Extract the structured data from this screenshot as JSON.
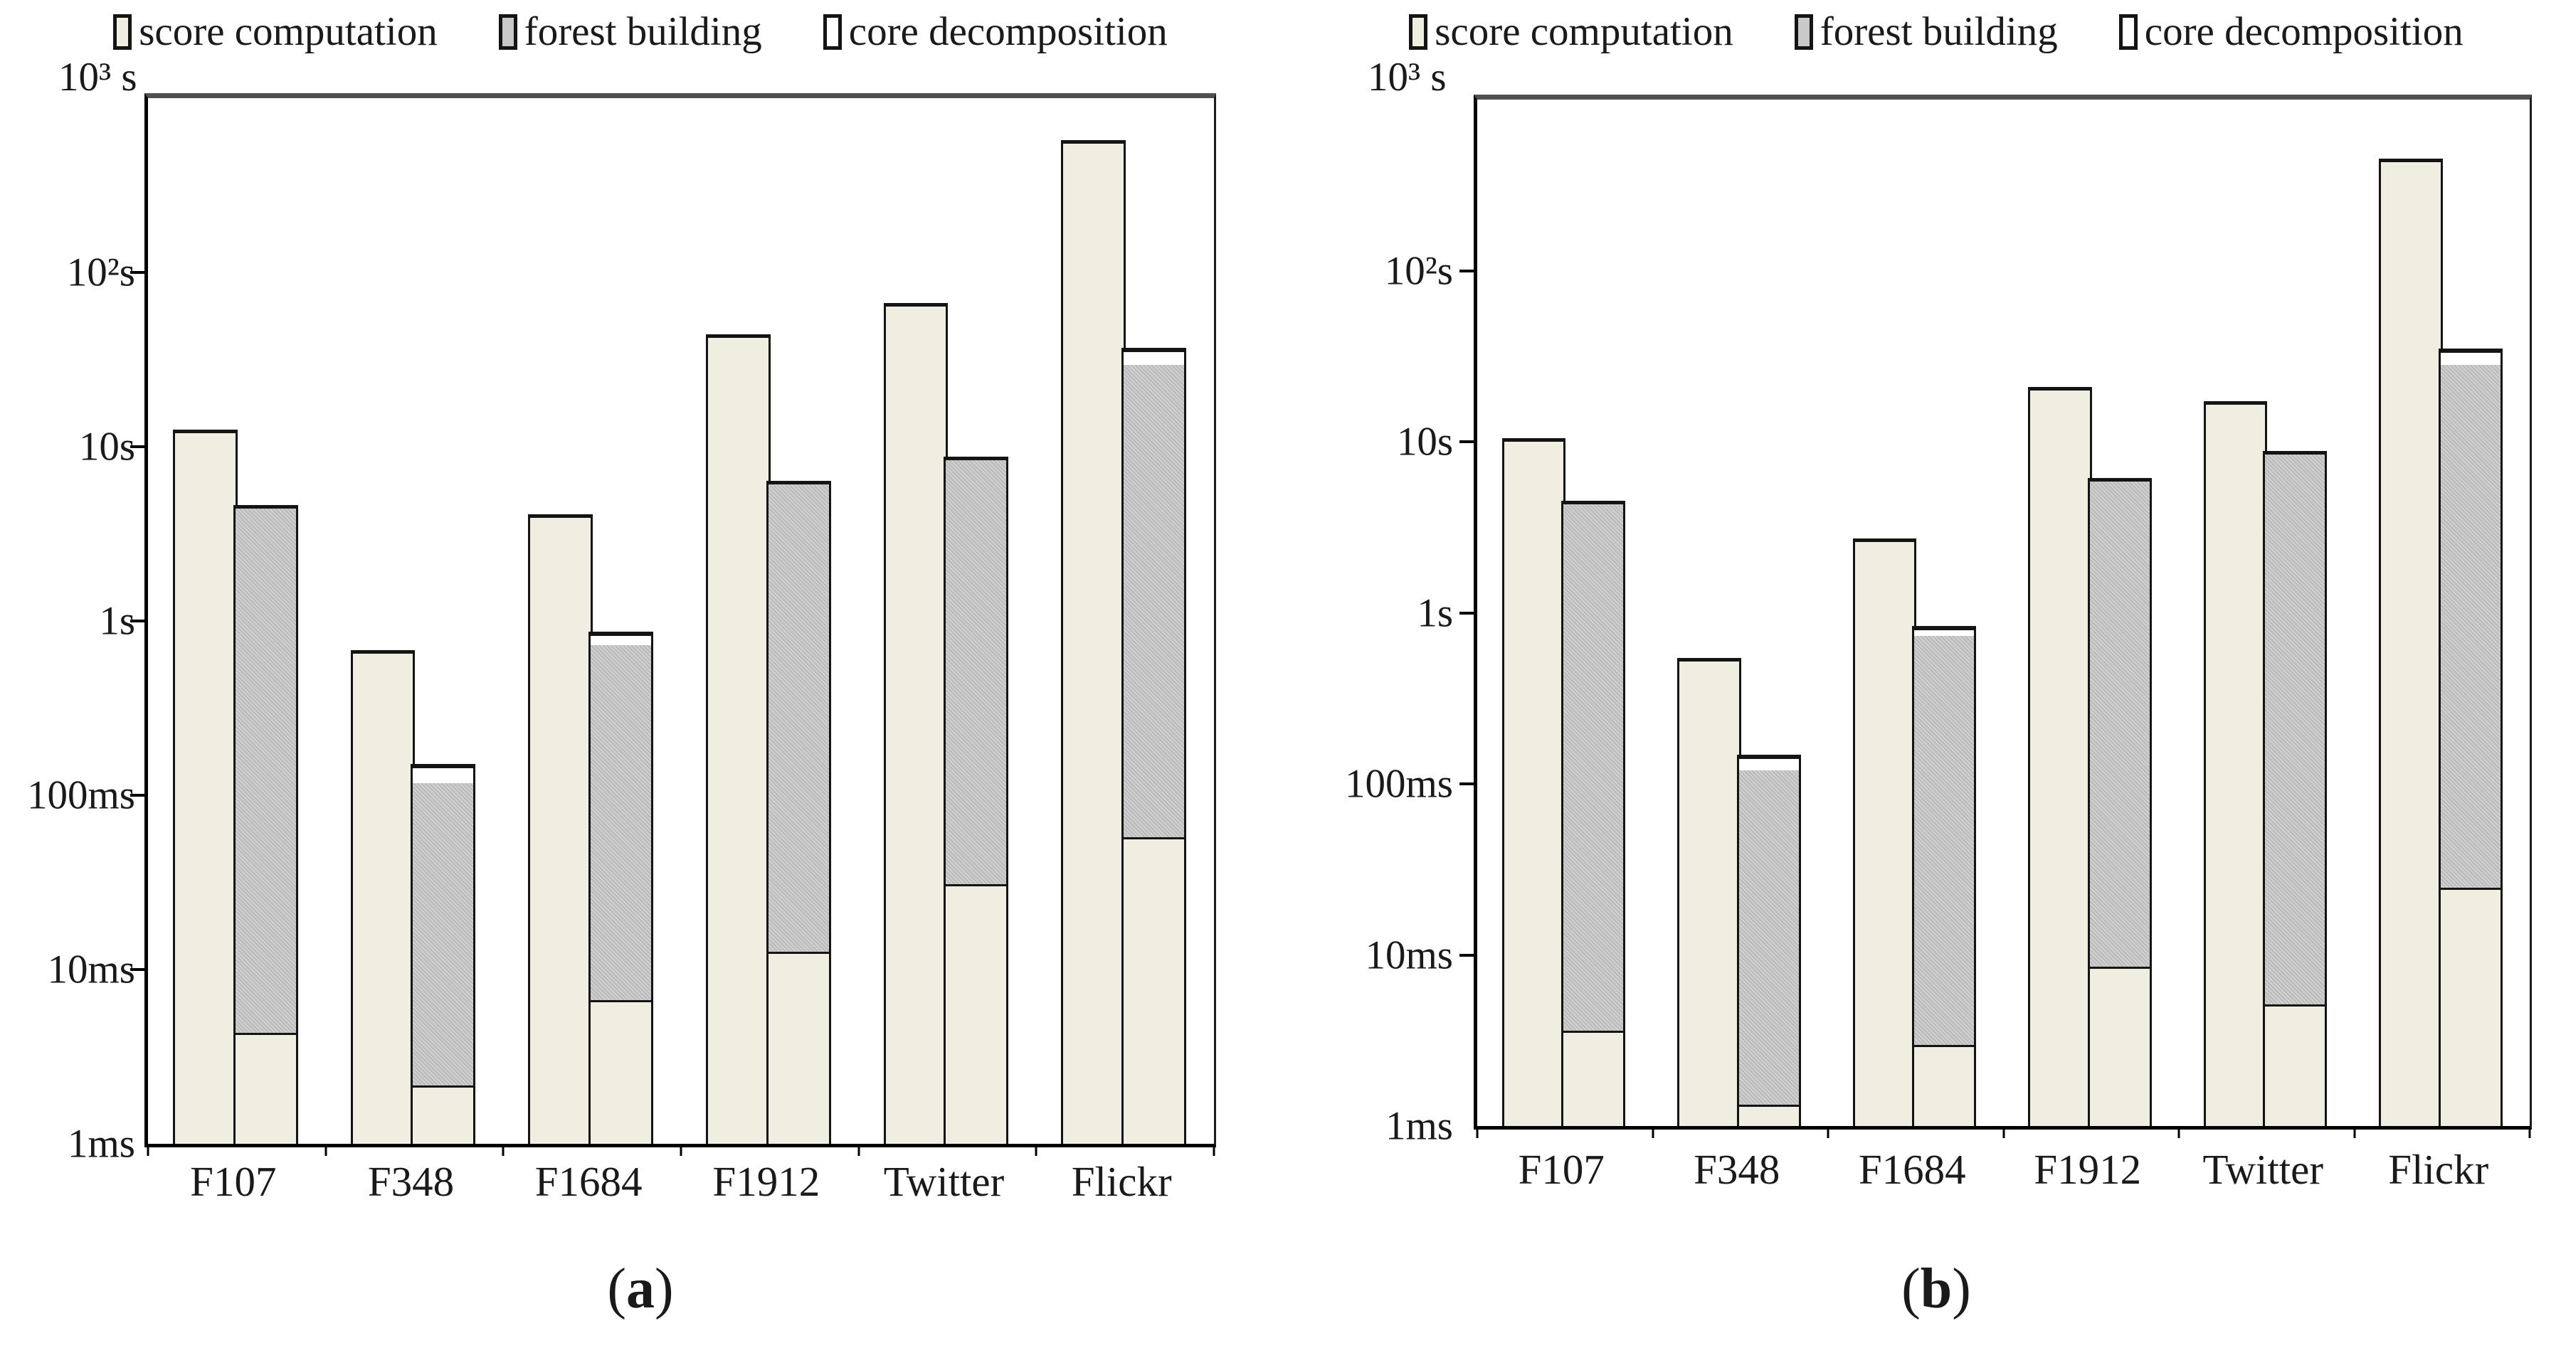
{
  "figure": {
    "legend": [
      {
        "label": "score computation",
        "color": "#f0ede1"
      },
      {
        "label": "forest building",
        "color": "#c9c9c9"
      },
      {
        "label": "core decomposition",
        "color": "#ffffff"
      }
    ],
    "panels": [
      {
        "caption_prefix": "(",
        "caption_letter": "a",
        "caption_suffix": ")",
        "y_axis_top_label": "10³ s",
        "y_tick_labels": [
          "10²s",
          "10s",
          "1s",
          "100ms",
          "10ms",
          "1ms"
        ],
        "categories": [
          "F107",
          "F348",
          "F1684",
          "F1912",
          "Twitter",
          "Flickr"
        ]
      },
      {
        "caption_prefix": "(",
        "caption_letter": "b",
        "caption_suffix": ")",
        "y_axis_top_label": "10³ s",
        "y_tick_labels": [
          "10²s",
          "10s",
          "1s",
          "100ms",
          "10ms",
          "1ms"
        ],
        "categories": [
          "F107",
          "F348",
          "F1684",
          "F1912",
          "Twitter",
          "Flickr"
        ]
      }
    ]
  },
  "chart_data": [
    {
      "type": "bar",
      "subplot": "a",
      "y_scale": "log",
      "y_range_ms": [
        1,
        1000000
      ],
      "y_ticks": [
        "10³ s",
        "10²s",
        "10s",
        "1s",
        "100ms",
        "10ms",
        "1ms"
      ],
      "grid": false,
      "legend_position": "top",
      "categories": [
        "F107",
        "F348",
        "F1684",
        "F1912",
        "Twitter",
        "Flickr"
      ],
      "bar_structure": "two bars per category: left bar = score computation total; right bar = stack of score computation (bottom), forest building (middle), core decomposition (top); values below are cumulative stack tops in milliseconds",
      "score_only_bar_ms": [
        12000,
        650,
        3900,
        42000,
        64000,
        550000
      ],
      "stacked_bar_cumulative_tops_ms": {
        "score_computation": [
          4.2,
          2.1,
          6.5,
          12.3,
          30,
          56
        ],
        "forest_building": [
          4300,
          117,
          730,
          5900,
          8100,
          29500
        ],
        "core_decomposition": [
          null,
          143,
          820,
          null,
          null,
          35000
        ]
      }
    },
    {
      "type": "bar",
      "subplot": "b",
      "y_scale": "log",
      "y_range_ms": [
        1,
        1000000
      ],
      "y_ticks": [
        "10³ s",
        "10²s",
        "10s",
        "1s",
        "100ms",
        "10ms",
        "1ms"
      ],
      "grid": false,
      "legend_position": "top",
      "categories": [
        "F107",
        "F348",
        "F1684",
        "F1912",
        "Twitter",
        "Flickr"
      ],
      "bar_structure": "two bars per category: left bar = score computation total; right bar = stack of score computation (bottom), forest building (middle), core decomposition (top); values below are cumulative stack tops in milliseconds",
      "score_only_bar_ms": [
        10000,
        520,
        2600,
        20000,
        16500,
        430000
      ],
      "stacked_bar_cumulative_tops_ms": {
        "score_computation": [
          3.5,
          1.3,
          2.9,
          8.3,
          5.0,
          24
        ],
        "forest_building": [
          4200,
          120,
          730,
          5700,
          8200,
          28000
        ],
        "core_decomposition": [
          null,
          140,
          790,
          null,
          null,
          33000
        ]
      }
    }
  ]
}
